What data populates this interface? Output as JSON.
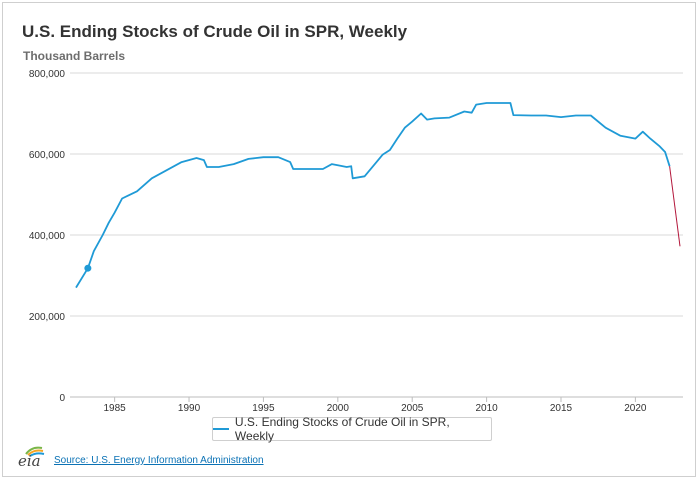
{
  "chart": {
    "title": "U.S. Ending Stocks of Crude Oil in SPR, Weekly",
    "subtitle": "Thousand Barrels",
    "legend_label": "U.S. Ending Stocks of Crude Oil in SPR, Weekly",
    "source_label": "Source: U.S. Energy Information Administration",
    "logo_text": "eia"
  },
  "colors": {
    "series": "#1f9ad6",
    "projection": "#b3173b",
    "grid": "#d8d8d8",
    "axis_text": "#333333"
  },
  "chart_data": {
    "type": "line",
    "title": "U.S. Ending Stocks of Crude Oil in SPR, Weekly",
    "ylabel": "Thousand Barrels",
    "xlim": [
      1982.0,
      2023.2
    ],
    "ylim": [
      0,
      800000
    ],
    "y_ticks": [
      0,
      200000,
      400000,
      600000,
      800000
    ],
    "y_tick_labels": [
      "0",
      "200,000",
      "400,000",
      "600,000",
      "800,000"
    ],
    "x_ticks": [
      1985,
      1990,
      1995,
      2000,
      2005,
      2010,
      2015,
      2020
    ],
    "x_tick_labels": [
      "1985",
      "1990",
      "1995",
      "2000",
      "2005",
      "2010",
      "2015",
      "2020"
    ],
    "grid": "horizontal",
    "legend_position": "bottom",
    "marker": {
      "x": 1983.2,
      "y": 318000
    },
    "series": [
      {
        "name": "U.S. Ending Stocks of Crude Oil in SPR, Weekly",
        "points": [
          [
            1982.4,
            270000
          ],
          [
            1983.2,
            318000
          ],
          [
            1983.6,
            360000
          ],
          [
            1984.2,
            400000
          ],
          [
            1984.6,
            430000
          ],
          [
            1985.0,
            455000
          ],
          [
            1985.5,
            490000
          ],
          [
            1986.5,
            508000
          ],
          [
            1987.5,
            540000
          ],
          [
            1988.5,
            560000
          ],
          [
            1989.5,
            580000
          ],
          [
            1990.5,
            590000
          ],
          [
            1991.0,
            585000
          ],
          [
            1991.2,
            568000
          ],
          [
            1992.0,
            568000
          ],
          [
            1993.0,
            575000
          ],
          [
            1994.0,
            588000
          ],
          [
            1995.0,
            592000
          ],
          [
            1996.0,
            592000
          ],
          [
            1996.8,
            580000
          ],
          [
            1997.0,
            563000
          ],
          [
            1999.0,
            563000
          ],
          [
            1999.6,
            575000
          ],
          [
            2000.0,
            572000
          ],
          [
            2000.6,
            568000
          ],
          [
            2000.9,
            570000
          ],
          [
            2001.0,
            540000
          ],
          [
            2001.8,
            545000
          ],
          [
            2002.6,
            580000
          ],
          [
            2003.0,
            598000
          ],
          [
            2003.5,
            610000
          ],
          [
            2004.0,
            638000
          ],
          [
            2004.5,
            665000
          ],
          [
            2005.0,
            680000
          ],
          [
            2005.6,
            700000
          ],
          [
            2006.0,
            685000
          ],
          [
            2006.5,
            688000
          ],
          [
            2007.5,
            690000
          ],
          [
            2008.5,
            705000
          ],
          [
            2009.0,
            702000
          ],
          [
            2009.3,
            722000
          ],
          [
            2010.0,
            726000
          ],
          [
            2011.6,
            726000
          ],
          [
            2011.8,
            696000
          ],
          [
            2013.0,
            695000
          ],
          [
            2014.0,
            695000
          ],
          [
            2015.0,
            691000
          ],
          [
            2016.0,
            695000
          ],
          [
            2017.0,
            695000
          ],
          [
            2018.0,
            665000
          ],
          [
            2019.0,
            645000
          ],
          [
            2020.0,
            638000
          ],
          [
            2020.5,
            655000
          ],
          [
            2021.0,
            638000
          ],
          [
            2021.6,
            620000
          ],
          [
            2022.0,
            605000
          ],
          [
            2022.3,
            570000
          ]
        ]
      }
    ],
    "projection": {
      "points": [
        [
          2022.3,
          570000
        ],
        [
          2023.0,
          372000
        ]
      ]
    }
  }
}
